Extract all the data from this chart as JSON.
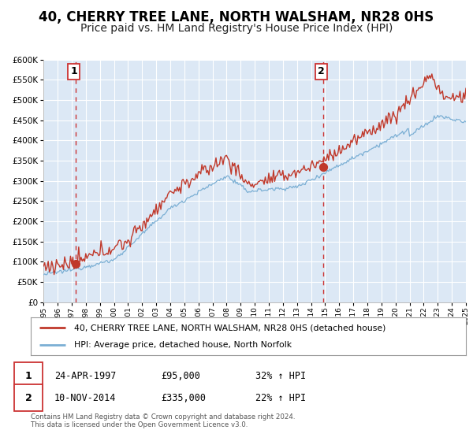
{
  "title": "40, CHERRY TREE LANE, NORTH WALSHAM, NR28 0HS",
  "subtitle": "Price paid vs. HM Land Registry's House Price Index (HPI)",
  "legend_line1": "40, CHERRY TREE LANE, NORTH WALSHAM, NR28 0HS (detached house)",
  "legend_line2": "HPI: Average price, detached house, North Norfolk",
  "annotation1_date": "24-APR-1997",
  "annotation1_price": "£95,000",
  "annotation1_hpi": "32% ↑ HPI",
  "annotation2_date": "10-NOV-2014",
  "annotation2_price": "£335,000",
  "annotation2_hpi": "22% ↑ HPI",
  "footer": "Contains HM Land Registry data © Crown copyright and database right 2024.\nThis data is licensed under the Open Government Licence v3.0.",
  "vline1_year": 1997.3,
  "vline2_year": 2014.87,
  "sale1_year": 1997.3,
  "sale1_price": 95000,
  "sale2_year": 2014.87,
  "sale2_price": 335000,
  "hpi_color": "#7bafd4",
  "price_color": "#c0392b",
  "vline_color": "#cc3333",
  "ylim_min": 0,
  "ylim_max": 600000,
  "xlim_min": 1995,
  "xlim_max": 2025,
  "background_color": "#dce8f5",
  "grid_color": "#ffffff",
  "title_fontsize": 12,
  "subtitle_fontsize": 10
}
